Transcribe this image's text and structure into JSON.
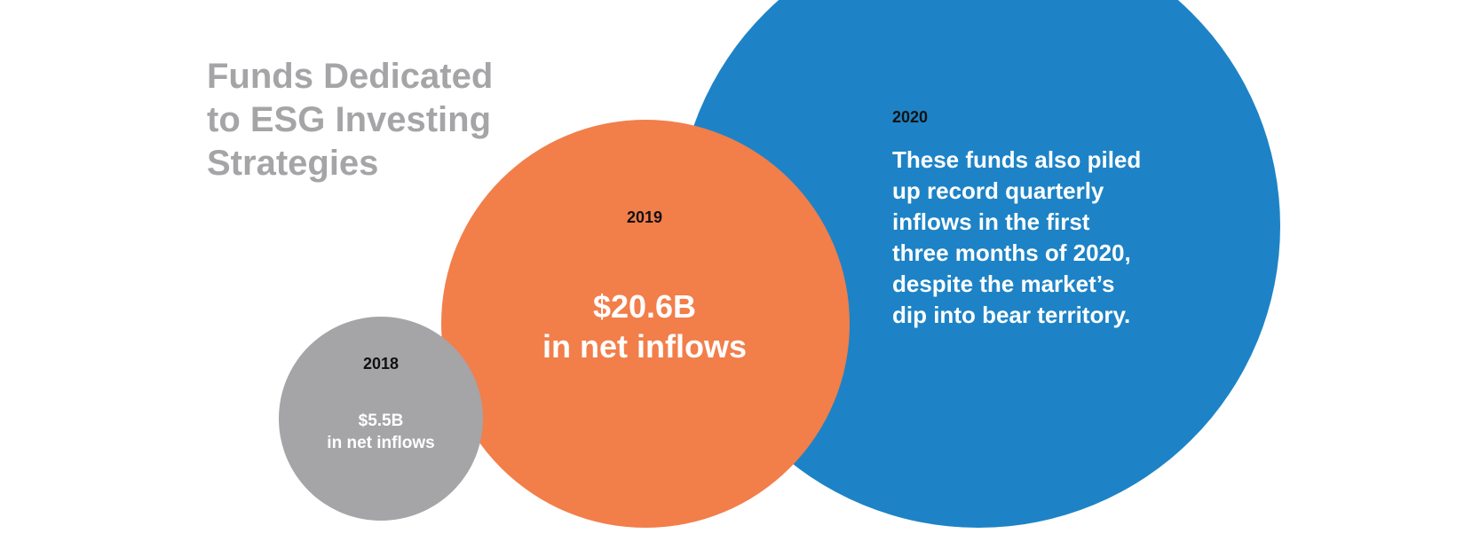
{
  "chart_data": {
    "type": "bubble",
    "title": "Funds Dedicated to ESG Investing Strategies",
    "title_lines": [
      "Funds Dedicated",
      "to ESG Investing",
      "Strategies"
    ],
    "unit": "USD billions, net inflows",
    "bubbles": [
      {
        "year": "2018",
        "value": 5.5,
        "value_label": "$5.5B",
        "caption": "in net inflows",
        "color": "#a5a4a7"
      },
      {
        "year": "2019",
        "value": 20.6,
        "value_label": "$20.6B",
        "caption": "in net inflows",
        "color": "#f27e4a"
      },
      {
        "year": "2020",
        "note_lines": [
          "These funds also piled",
          "up record quarterly",
          "inflows in the first",
          "three months of 2020,",
          "despite the market’s",
          "dip into bear territory."
        ],
        "color": "#1d83c6"
      }
    ]
  }
}
